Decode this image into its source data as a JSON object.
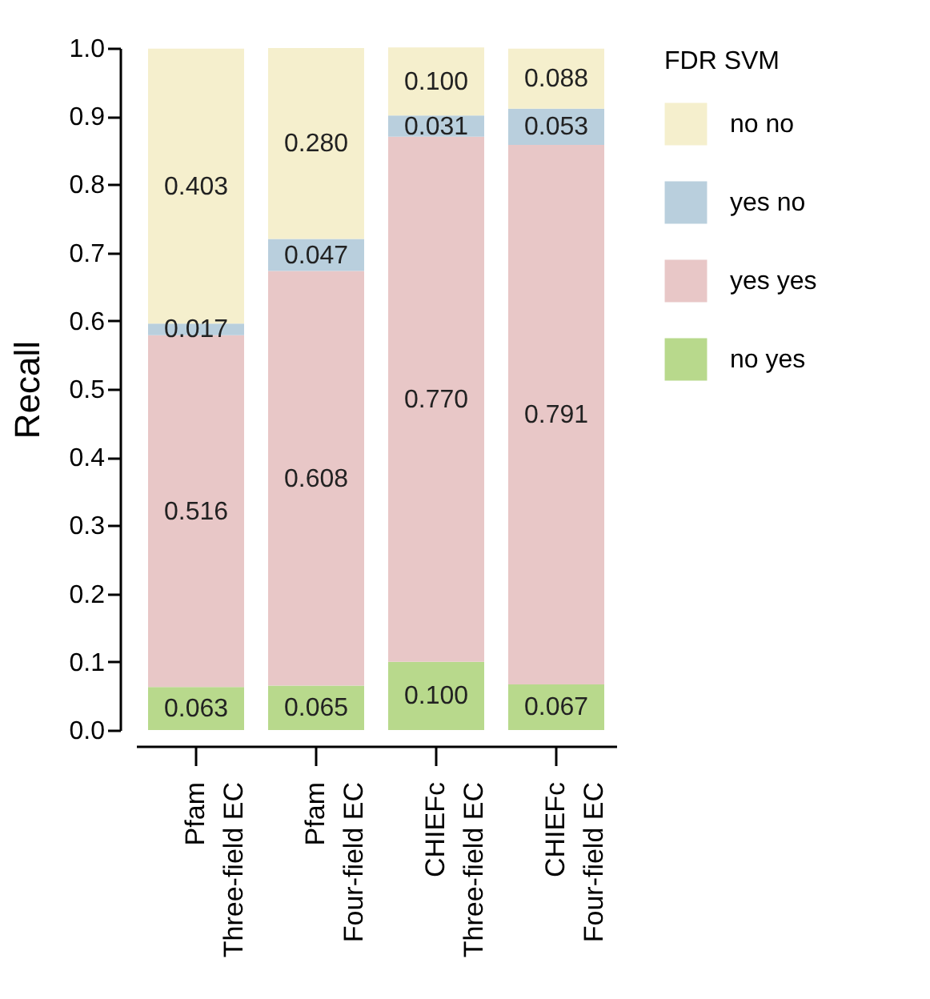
{
  "chart_data": {
    "type": "bar",
    "stacked": true,
    "ylabel": "Recall",
    "legend_title": "FDR SVM",
    "legend": "right",
    "grid": false,
    "categories": [
      "Pfam\nThree-field EC",
      "Pfam\nFour-field EC",
      "CHIEFc\nThree-field EC",
      "CHIEFc\nFour-field EC"
    ],
    "ylim": [
      0,
      1
    ],
    "yticks": [
      {
        "value": 0,
        "label": "0.0"
      },
      {
        "value": 0.1,
        "label": "0.1"
      },
      {
        "value": 0.2,
        "label": "0.2"
      },
      {
        "value": 0.3,
        "label": "0.3"
      },
      {
        "value": 0.4,
        "label": "0.4"
      },
      {
        "value": 0.5,
        "label": "0.5"
      },
      {
        "value": 0.6,
        "label": "0.6"
      },
      {
        "value": 0.7,
        "label": "0.7"
      },
      {
        "value": 0.8,
        "label": "0.8"
      },
      {
        "value": 0.9,
        "label": "0.9"
      },
      {
        "value": 1,
        "label": "1.0"
      }
    ],
    "series": [
      {
        "name": "no yes",
        "color": "#b8d98c",
        "values": [
          0.063,
          0.065,
          0.1,
          0.067
        ],
        "value_labels": [
          "0.063",
          "0.065",
          "0.100",
          "0.067"
        ]
      },
      {
        "name": "yes yes",
        "color": "#e8c7c7",
        "values": [
          0.516,
          0.608,
          0.77,
          0.791
        ],
        "value_labels": [
          "0.516",
          "0.608",
          "0.770",
          "0.791"
        ]
      },
      {
        "name": "yes no",
        "color": "#b9cfdd",
        "values": [
          0.017,
          0.047,
          0.031,
          0.053
        ],
        "value_labels": [
          "0.017",
          "0.047",
          "0.031",
          "0.053"
        ]
      },
      {
        "name": "no no",
        "color": "#f5efcd",
        "values": [
          0.403,
          0.28,
          0.1,
          0.088
        ],
        "value_labels": [
          "0.403",
          "0.280",
          "0.100",
          "0.088"
        ]
      }
    ]
  }
}
